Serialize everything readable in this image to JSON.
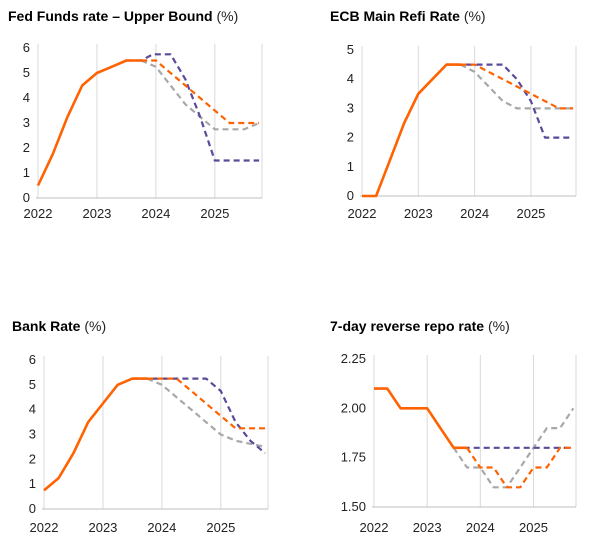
{
  "colors": {
    "actual": "#ff6200",
    "forecast": "#ff6200",
    "market": "#a8a8a8",
    "alt": "#5a4a9a"
  },
  "chart_data": [
    {
      "type": "line",
      "title": "Fed Funds rate – Upper Bound",
      "unit": "(%)",
      "ylim": [
        0,
        6
      ],
      "yticks": [
        "0",
        "1",
        "2",
        "3",
        "4",
        "5",
        "6"
      ],
      "xlim": [
        2022,
        2025.8
      ],
      "xticks": [
        "2022",
        "2023",
        "2024",
        "2025"
      ],
      "series": [
        {
          "style": "actual",
          "points": [
            [
              2022.0,
              0.5
            ],
            [
              2022.25,
              1.75
            ],
            [
              2022.5,
              3.25
            ],
            [
              2022.75,
              4.5
            ],
            [
              2023.0,
              5.0
            ],
            [
              2023.25,
              5.25
            ],
            [
              2023.5,
              5.5
            ],
            [
              2023.75,
              5.5
            ]
          ]
        },
        {
          "style": "forecast",
          "points": [
            [
              2023.75,
              5.5
            ],
            [
              2024.0,
              5.5
            ],
            [
              2024.25,
              5.0
            ],
            [
              2024.5,
              4.5
            ],
            [
              2024.75,
              4.0
            ],
            [
              2025.0,
              3.5
            ],
            [
              2025.25,
              3.0
            ],
            [
              2025.75,
              3.0
            ]
          ]
        },
        {
          "style": "market",
          "points": [
            [
              2023.75,
              5.5
            ],
            [
              2024.0,
              5.25
            ],
            [
              2024.25,
              4.5
            ],
            [
              2024.5,
              3.75
            ],
            [
              2024.75,
              3.25
            ],
            [
              2025.0,
              2.75
            ],
            [
              2025.5,
              2.75
            ],
            [
              2025.75,
              3.0
            ]
          ]
        },
        {
          "style": "alt",
          "points": [
            [
              2023.5,
              5.5
            ],
            [
              2023.75,
              5.5
            ],
            [
              2023.95,
              5.75
            ],
            [
              2024.25,
              5.75
            ],
            [
              2024.5,
              4.75
            ],
            [
              2024.75,
              3.25
            ],
            [
              2025.0,
              1.5
            ],
            [
              2025.75,
              1.5
            ]
          ]
        }
      ]
    },
    {
      "type": "line",
      "title": "ECB Main Refi Rate",
      "unit": "(%)",
      "ylim": [
        0,
        5
      ],
      "yticks": [
        "0",
        "1",
        "2",
        "3",
        "4",
        "5"
      ],
      "xlim": [
        2022,
        2025.8
      ],
      "xticks": [
        "2022",
        "2023",
        "2024",
        "2025"
      ],
      "series": [
        {
          "style": "actual",
          "points": [
            [
              2022.0,
              0.0
            ],
            [
              2022.25,
              0.0
            ],
            [
              2022.5,
              1.25
            ],
            [
              2022.75,
              2.5
            ],
            [
              2023.0,
              3.5
            ],
            [
              2023.25,
              4.0
            ],
            [
              2023.5,
              4.5
            ],
            [
              2023.75,
              4.5
            ]
          ]
        },
        {
          "style": "forecast",
          "points": [
            [
              2023.75,
              4.5
            ],
            [
              2024.0,
              4.5
            ],
            [
              2024.25,
              4.25
            ],
            [
              2024.5,
              4.0
            ],
            [
              2024.75,
              3.75
            ],
            [
              2025.0,
              3.5
            ],
            [
              2025.25,
              3.25
            ],
            [
              2025.5,
              3.0
            ],
            [
              2025.75,
              3.0
            ]
          ]
        },
        {
          "style": "market",
          "points": [
            [
              2023.75,
              4.5
            ],
            [
              2024.0,
              4.25
            ],
            [
              2024.25,
              3.75
            ],
            [
              2024.5,
              3.25
            ],
            [
              2024.75,
              3.0
            ],
            [
              2025.75,
              3.0
            ]
          ]
        },
        {
          "style": "alt",
          "points": [
            [
              2023.5,
              4.5
            ],
            [
              2024.5,
              4.5
            ],
            [
              2024.75,
              4.0
            ],
            [
              2025.0,
              3.25
            ],
            [
              2025.25,
              2.0
            ],
            [
              2025.75,
              2.0
            ]
          ]
        }
      ]
    },
    {
      "type": "line",
      "title": "Bank Rate",
      "unit": "(%)",
      "ylim": [
        0,
        6
      ],
      "yticks": [
        "0",
        "1",
        "2",
        "3",
        "4",
        "5",
        "6"
      ],
      "xlim": [
        2022,
        2025.8
      ],
      "xticks": [
        "2022",
        "2023",
        "2024",
        "2025"
      ],
      "series": [
        {
          "style": "actual",
          "points": [
            [
              2022.0,
              0.75
            ],
            [
              2022.25,
              1.25
            ],
            [
              2022.5,
              2.25
            ],
            [
              2022.75,
              3.5
            ],
            [
              2023.0,
              4.25
            ],
            [
              2023.25,
              5.0
            ],
            [
              2023.5,
              5.25
            ],
            [
              2023.75,
              5.25
            ]
          ]
        },
        {
          "style": "forecast",
          "points": [
            [
              2023.75,
              5.25
            ],
            [
              2024.25,
              5.25
            ],
            [
              2024.5,
              4.75
            ],
            [
              2024.75,
              4.25
            ],
            [
              2025.0,
              3.75
            ],
            [
              2025.25,
              3.25
            ],
            [
              2025.75,
              3.25
            ]
          ]
        },
        {
          "style": "market",
          "points": [
            [
              2023.75,
              5.25
            ],
            [
              2024.0,
              5.0
            ],
            [
              2024.25,
              4.5
            ],
            [
              2024.5,
              4.0
            ],
            [
              2024.75,
              3.5
            ],
            [
              2025.0,
              3.0
            ],
            [
              2025.25,
              2.75
            ],
            [
              2025.75,
              2.5
            ]
          ]
        },
        {
          "style": "alt",
          "points": [
            [
              2023.5,
              5.25
            ],
            [
              2024.75,
              5.25
            ],
            [
              2025.0,
              4.75
            ],
            [
              2025.25,
              3.5
            ],
            [
              2025.5,
              2.75
            ],
            [
              2025.75,
              2.25
            ]
          ]
        }
      ]
    },
    {
      "type": "line",
      "title": "7-day reverse repo rate",
      "unit": "(%)",
      "ylim": [
        1.5,
        2.25
      ],
      "yticks": [
        "1.50",
        "1.75",
        "2.00",
        "2.25"
      ],
      "xlim": [
        2022,
        2025.8
      ],
      "xticks": [
        "2022",
        "2023",
        "2024",
        "2025"
      ],
      "series": [
        {
          "style": "actual",
          "points": [
            [
              2022.0,
              2.1
            ],
            [
              2022.25,
              2.1
            ],
            [
              2022.5,
              2.0
            ],
            [
              2023.0,
              2.0
            ],
            [
              2023.25,
              1.9
            ],
            [
              2023.5,
              1.8
            ],
            [
              2023.75,
              1.8
            ]
          ]
        },
        {
          "style": "forecast",
          "points": [
            [
              2023.75,
              1.8
            ],
            [
              2024.0,
              1.7
            ],
            [
              2024.25,
              1.7
            ],
            [
              2024.5,
              1.6
            ],
            [
              2024.75,
              1.6
            ],
            [
              2025.0,
              1.7
            ],
            [
              2025.25,
              1.7
            ],
            [
              2025.5,
              1.8
            ],
            [
              2025.75,
              1.8
            ]
          ]
        },
        {
          "style": "market",
          "points": [
            [
              2023.5,
              1.8
            ],
            [
              2023.75,
              1.7
            ],
            [
              2024.0,
              1.7
            ],
            [
              2024.25,
              1.6
            ],
            [
              2024.5,
              1.6
            ],
            [
              2024.75,
              1.7
            ],
            [
              2025.0,
              1.8
            ],
            [
              2025.25,
              1.9
            ],
            [
              2025.5,
              1.9
            ],
            [
              2025.75,
              2.0
            ]
          ]
        },
        {
          "style": "alt",
          "points": [
            [
              2023.5,
              1.8
            ],
            [
              2025.75,
              1.8
            ]
          ]
        }
      ]
    }
  ]
}
